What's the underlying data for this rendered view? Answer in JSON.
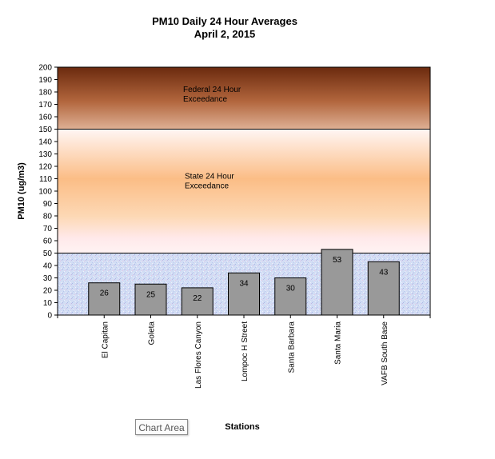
{
  "chart_data": {
    "type": "bar",
    "title": "PM10 Daily 24 Hour Averages",
    "subtitle": "April 2, 2015",
    "xlabel": "Stations",
    "ylabel": "PM10 (ug/m3)",
    "ylim": [
      0,
      200
    ],
    "ytick_step": 10,
    "categories": [
      "El Capitan",
      "Goleta",
      "Las Flores Canyon",
      "Lompoc H Street",
      "Santa Barbara",
      "Santa Maria",
      "VAFB South Base"
    ],
    "values": [
      26,
      25,
      22,
      34,
      30,
      53,
      43
    ],
    "bar_color": "#999999",
    "bands": [
      {
        "from": 150,
        "to": 200,
        "label_lines": [
          "Federal 24 Hour",
          "Exceedance"
        ],
        "label_y": 180,
        "colors": [
          "#7a3414",
          "#b3643a",
          "#d9a47f"
        ]
      },
      {
        "from": 50,
        "to": 150,
        "label_lines": [
          "State 24 Hour",
          "Exceedance"
        ],
        "label_y": 110,
        "colors": [
          "#fff2ee",
          "#fbc18c",
          "#fde2c6",
          "#fff0f0"
        ]
      },
      {
        "from": 0,
        "to": 50,
        "label_lines": [],
        "colors": [
          "#c9d6f2",
          "#d6def5"
        ]
      }
    ],
    "grid": false
  },
  "tooltip": "Chart Area"
}
